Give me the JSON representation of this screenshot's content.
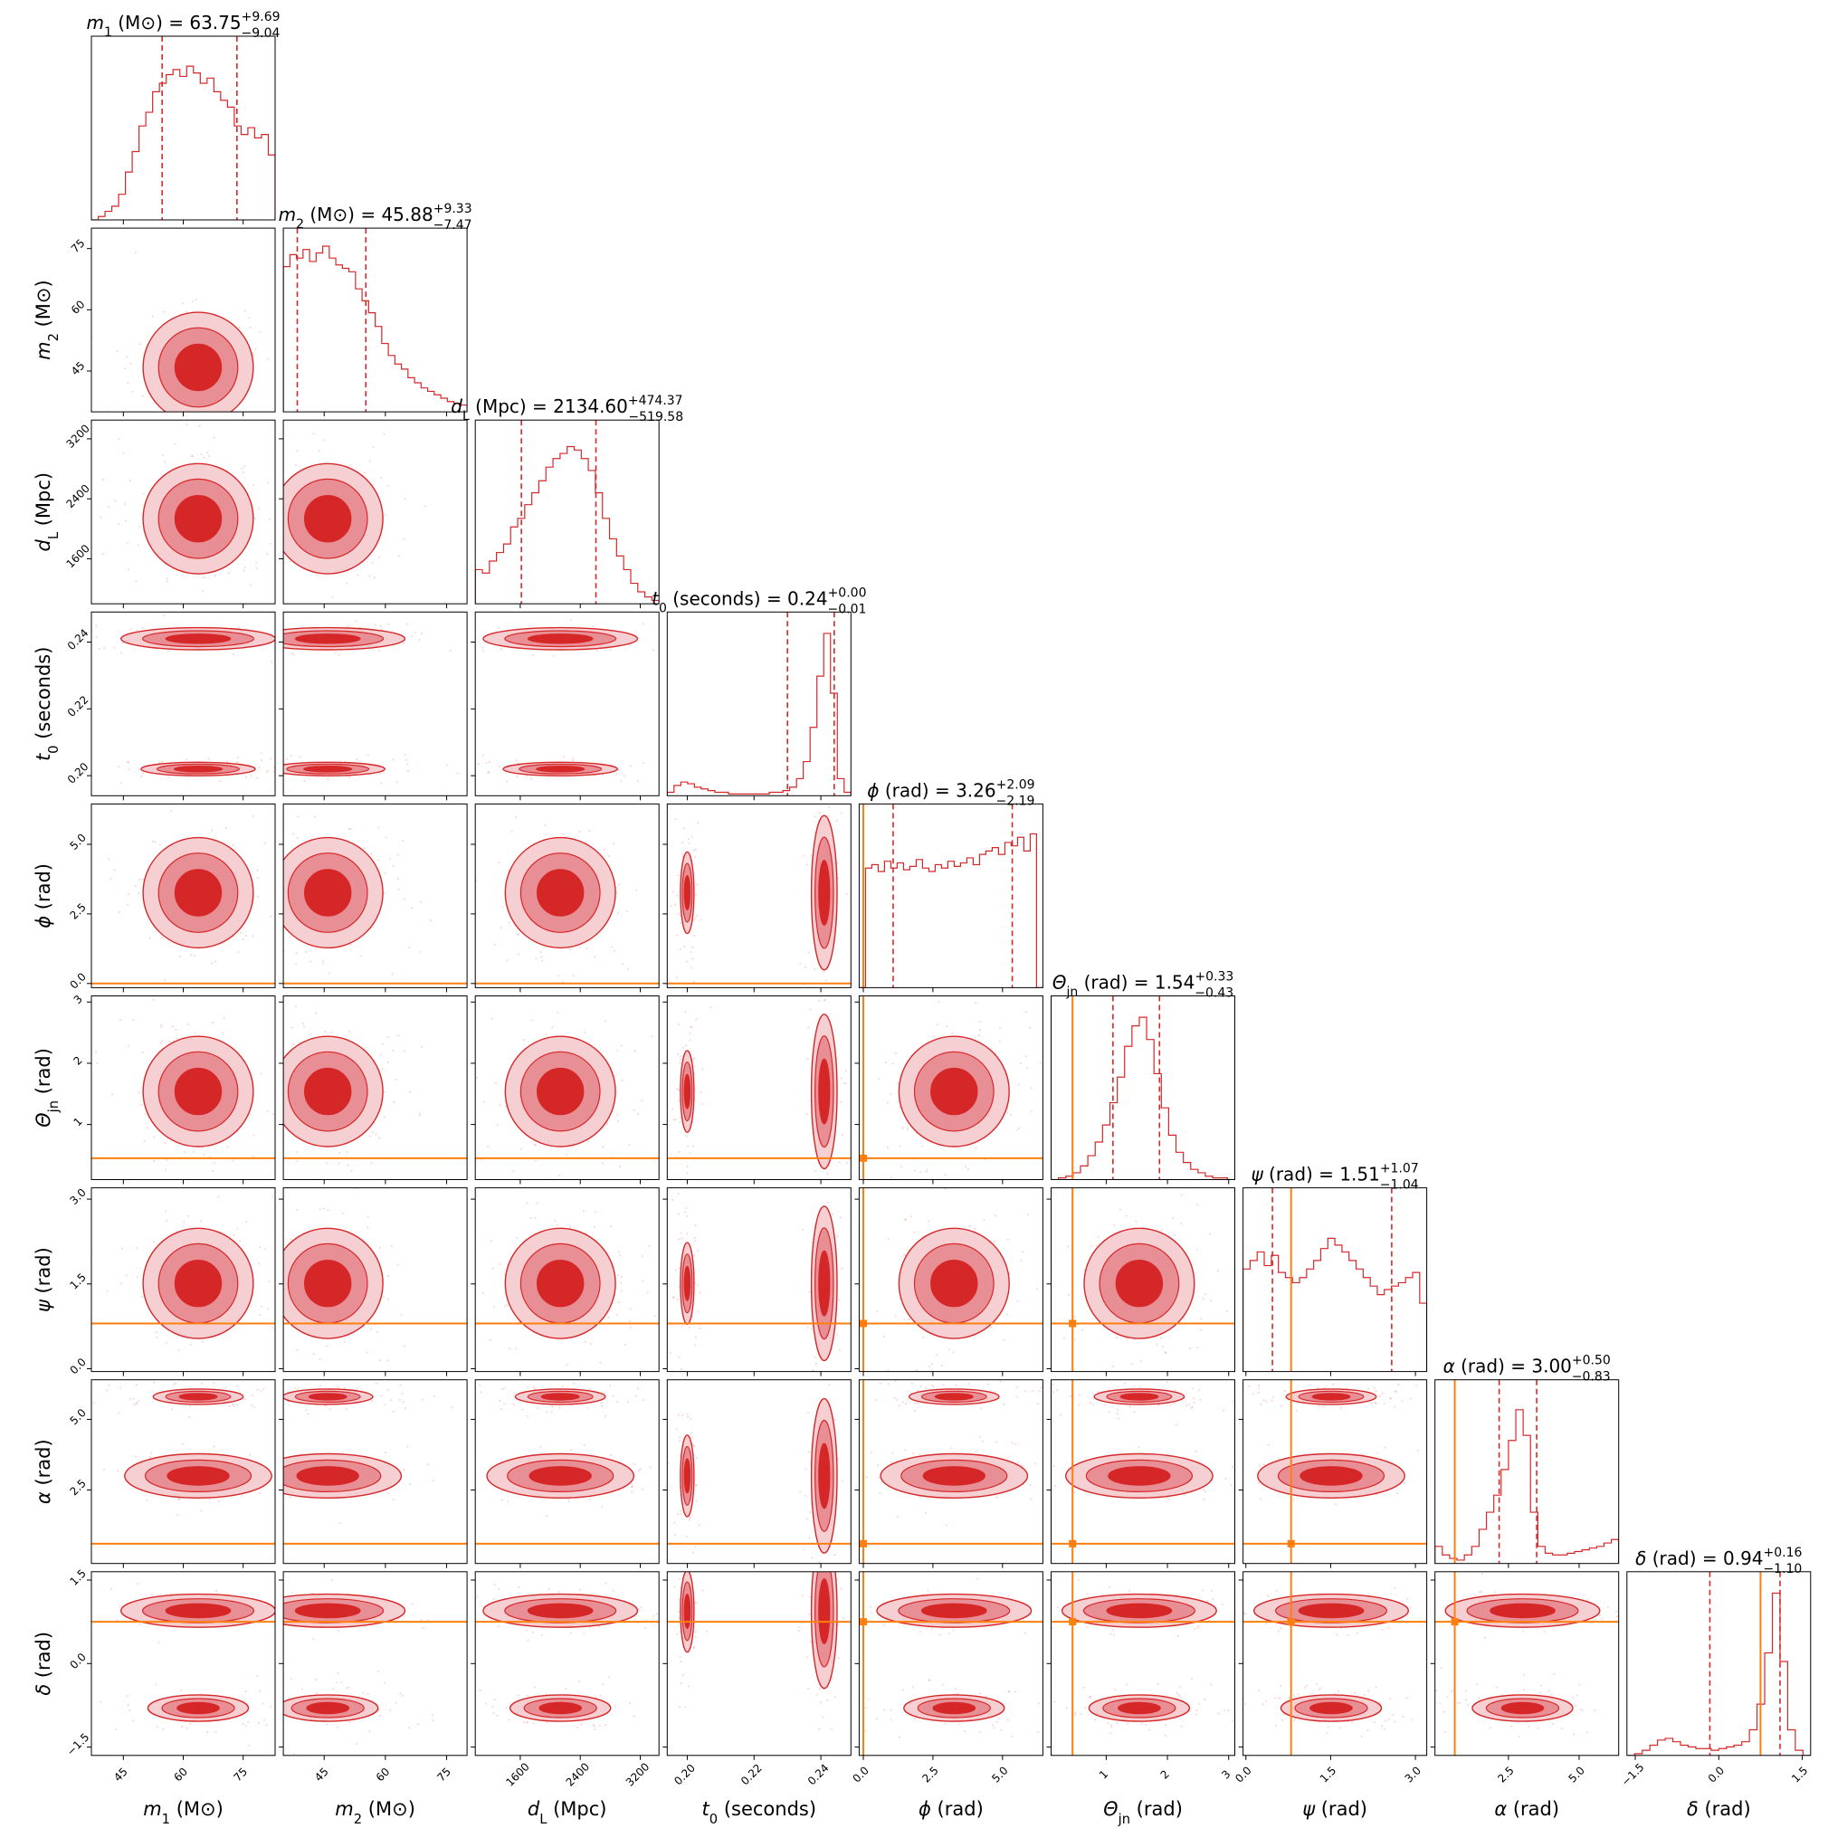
{
  "chart_data": {
    "type": "corner",
    "colors": {
      "posterior": "#d62728",
      "posterior_light": "#e88f95",
      "posterior_lighter": "#f6cfd3",
      "injection": "#ff7f0e"
    },
    "quantiles": [
      0.16,
      0.84
    ],
    "parameters": [
      {
        "key": "m1",
        "label_sym": "m",
        "label_sub": "1",
        "label_rest": " (M⊙)",
        "title_value": "63.75",
        "title_plus": "+9.69",
        "title_minus": "−9.04",
        "range": [
          37,
          83
        ],
        "ticks": [
          45,
          60,
          75
        ],
        "tick_labels": [
          "45",
          "60",
          "75"
        ],
        "median": 63.75,
        "q_low": 54.71,
        "q_high": 73.44,
        "injection": null,
        "hist": [
          0.0,
          0.02,
          0.05,
          0.08,
          0.15,
          0.28,
          0.4,
          0.55,
          0.63,
          0.75,
          0.8,
          0.85,
          0.88,
          0.84,
          0.9,
          0.86,
          0.8,
          0.83,
          0.75,
          0.7,
          0.66,
          0.55,
          0.5,
          0.54,
          0.48,
          0.5,
          0.38
        ]
      },
      {
        "key": "m2",
        "label_sym": "m",
        "label_sub": "2",
        "label_rest": " (M⊙)",
        "title_value": "45.88",
        "title_plus": "+9.33",
        "title_minus": "−7.47",
        "range": [
          35,
          80
        ],
        "ticks": [
          45,
          60,
          75
        ],
        "tick_labels": [
          "45",
          "60",
          "75"
        ],
        "median": 45.88,
        "q_low": 38.41,
        "q_high": 55.21,
        "injection": null,
        "hist": [
          0.85,
          0.92,
          0.9,
          0.95,
          0.88,
          0.93,
          0.97,
          0.9,
          0.86,
          0.84,
          0.82,
          0.72,
          0.65,
          0.58,
          0.5,
          0.4,
          0.33,
          0.28,
          0.25,
          0.2,
          0.17,
          0.14,
          0.12,
          0.1,
          0.08,
          0.06,
          0.05,
          0.04
        ]
      },
      {
        "key": "dL",
        "label_sym": "d",
        "label_sub": "L",
        "label_rest": " (Mpc)",
        "title_value": "2134.60",
        "title_plus": "+474.37",
        "title_minus": "−519.58",
        "range": [
          1000,
          3450
        ],
        "ticks": [
          1600,
          2400,
          3200
        ],
        "tick_labels": [
          "1600",
          "2400",
          "3200"
        ],
        "median": 2134.6,
        "q_low": 1615.02,
        "q_high": 2608.97,
        "injection": null,
        "hist": [
          0.2,
          0.18,
          0.25,
          0.3,
          0.35,
          0.45,
          0.5,
          0.58,
          0.65,
          0.72,
          0.8,
          0.85,
          0.88,
          0.92,
          0.9,
          0.85,
          0.78,
          0.65,
          0.5,
          0.38,
          0.28,
          0.2,
          0.12,
          0.07,
          0.04,
          0.02
        ]
      },
      {
        "key": "t0",
        "label_sym": "t",
        "label_sub": "0",
        "label_rest": " (seconds)",
        "title_value": "0.24",
        "title_plus": "+0.00",
        "title_minus": "−0.01",
        "range": [
          0.194,
          0.249
        ],
        "ticks": [
          0.2,
          0.22,
          0.24
        ],
        "tick_labels": [
          "0.20",
          "0.22",
          "0.24"
        ],
        "median": 0.24,
        "q_low": 0.23,
        "q_high": 0.244,
        "injection": null,
        "hist": [
          0.02,
          0.06,
          0.08,
          0.07,
          0.05,
          0.04,
          0.03,
          0.02,
          0.02,
          0.01,
          0.01,
          0.01,
          0.01,
          0.01,
          0.01,
          0.02,
          0.02,
          0.03,
          0.05,
          0.1,
          0.2,
          0.4,
          0.7,
          0.95,
          0.6,
          0.1,
          0.02
        ]
      },
      {
        "key": "phi",
        "label_sym": "ϕ",
        "label_sub": "",
        "label_rest": " (rad)",
        "title_value": "3.26",
        "title_plus": "+2.09",
        "title_minus": "−2.19",
        "range": [
          -0.15,
          6.45
        ],
        "ticks": [
          0.0,
          2.5,
          5.0
        ],
        "tick_labels": [
          "0.0",
          "2.5",
          "5.0"
        ],
        "median": 3.26,
        "q_low": 1.07,
        "q_high": 5.35,
        "injection": 0.0,
        "hist": [
          0.0,
          0.7,
          0.72,
          0.68,
          0.74,
          0.7,
          0.73,
          0.69,
          0.71,
          0.75,
          0.7,
          0.68,
          0.72,
          0.7,
          0.74,
          0.71,
          0.73,
          0.76,
          0.72,
          0.78,
          0.8,
          0.82,
          0.78,
          0.85,
          0.83,
          0.88,
          0.8,
          0.9,
          0.0
        ]
      },
      {
        "key": "theta",
        "label_sym": "Θ",
        "label_sub": "jn",
        "label_rest": " (rad)",
        "title_value": "1.54",
        "title_plus": "+0.33",
        "title_minus": "−0.43",
        "range": [
          0.1,
          3.1
        ],
        "ticks": [
          1,
          2,
          3
        ],
        "tick_labels": [
          "1",
          "2",
          "3"
        ],
        "median": 1.54,
        "q_low": 1.11,
        "q_high": 1.87,
        "injection": 0.45,
        "hist": [
          0.0,
          0.01,
          0.02,
          0.04,
          0.08,
          0.14,
          0.22,
          0.32,
          0.45,
          0.6,
          0.78,
          0.9,
          0.95,
          0.82,
          0.62,
          0.42,
          0.26,
          0.16,
          0.1,
          0.06,
          0.04,
          0.02,
          0.01,
          0.01,
          0.0
        ]
      },
      {
        "key": "psi",
        "label_sym": "ψ",
        "label_sub": "",
        "label_rest": " (rad)",
        "title_value": "1.51",
        "title_plus": "+1.07",
        "title_minus": "−1.04",
        "range": [
          -0.05,
          3.2
        ],
        "ticks": [
          0.0,
          1.5,
          3.0
        ],
        "tick_labels": [
          "0.0",
          "1.5",
          "3.0"
        ],
        "median": 1.51,
        "q_low": 0.47,
        "q_high": 2.58,
        "injection": 0.8,
        "hist": [
          0.6,
          0.65,
          0.7,
          0.62,
          0.68,
          0.58,
          0.55,
          0.52,
          0.55,
          0.6,
          0.65,
          0.72,
          0.78,
          0.74,
          0.7,
          0.65,
          0.6,
          0.55,
          0.5,
          0.45,
          0.48,
          0.5,
          0.52,
          0.55,
          0.58,
          0.4
        ]
      },
      {
        "key": "alpha",
        "label_sym": "α",
        "label_sub": "",
        "label_rest": " (rad)",
        "title_value": "3.00",
        "title_plus": "+0.50",
        "title_minus": "−0.83",
        "range": [
          -0.1,
          6.4
        ],
        "ticks": [
          2.5,
          5.0
        ],
        "tick_labels": [
          "2.5",
          "5.0"
        ],
        "median": 3.0,
        "q_low": 2.17,
        "q_high": 3.5,
        "injection": 0.6,
        "hist": [
          0.1,
          0.05,
          0.03,
          0.02,
          0.05,
          0.1,
          0.2,
          0.3,
          0.4,
          0.55,
          0.72,
          0.9,
          0.75,
          0.3,
          0.1,
          0.06,
          0.05,
          0.05,
          0.06,
          0.07,
          0.08,
          0.09,
          0.1,
          0.12,
          0.14
        ]
      },
      {
        "key": "delta",
        "label_sym": "δ",
        "label_sub": "",
        "label_rest": " (rad)",
        "title_value": "0.94",
        "title_plus": "+0.16",
        "title_minus": "−1.10",
        "range": [
          -1.65,
          1.65
        ],
        "ticks": [
          -1.5,
          0.0,
          1.5
        ],
        "tick_labels": [
          "−1.5",
          "0.0",
          "1.5"
        ],
        "median": 0.94,
        "q_low": -0.16,
        "q_high": 1.1,
        "injection": 0.75,
        "hist": [
          0.0,
          0.01,
          0.03,
          0.06,
          0.09,
          0.1,
          0.08,
          0.06,
          0.05,
          0.04,
          0.04,
          0.03,
          0.04,
          0.05,
          0.06,
          0.08,
          0.15,
          0.3,
          0.6,
          0.95,
          0.55,
          0.15,
          0.03,
          0.0
        ]
      }
    ]
  }
}
